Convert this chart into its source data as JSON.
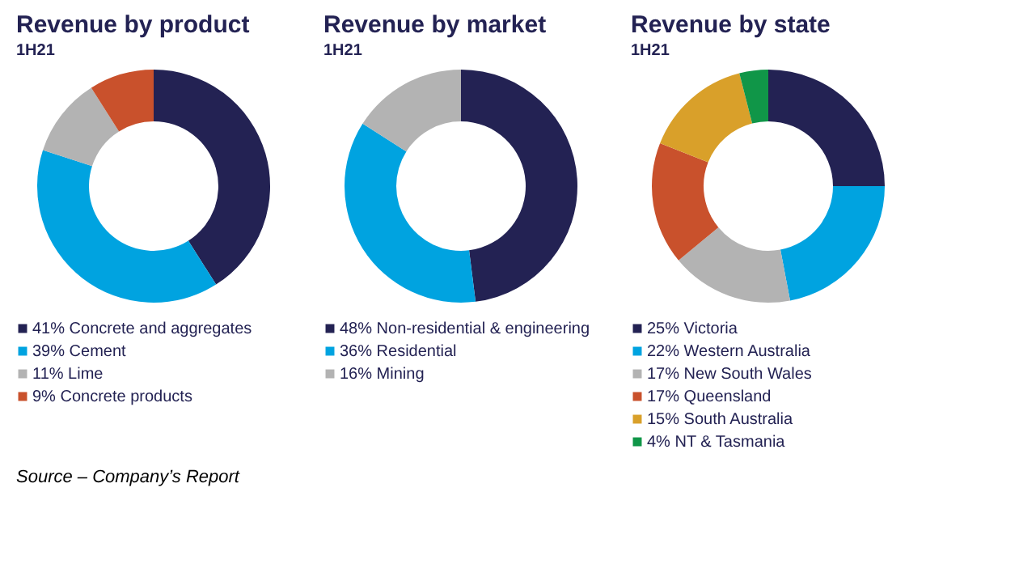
{
  "chart_data": [
    {
      "type": "donut",
      "subtitle": "1H21",
      "title": "Revenue by product",
      "legend": "bottom",
      "categories": [
        "Concrete and aggregates",
        "Cement",
        "Lime",
        "Concrete products"
      ],
      "values": [
        41,
        39,
        11,
        9
      ],
      "value_labels": [
        "41%",
        "39%",
        "11%",
        "9%"
      ],
      "colors": [
        "#232253",
        "#00a3e0",
        "#b3b3b3",
        "#c9512c"
      ]
    },
    {
      "type": "donut",
      "subtitle": "1H21",
      "title": "Revenue by market",
      "legend": "bottom",
      "categories": [
        "Non-residential & engineering",
        "Residential",
        "Mining"
      ],
      "values": [
        48,
        36,
        16
      ],
      "value_labels": [
        "48%",
        "36%",
        "16%"
      ],
      "colors": [
        "#232253",
        "#00a3e0",
        "#b3b3b3"
      ]
    },
    {
      "type": "donut",
      "subtitle": "1H21",
      "title": "Revenue by state",
      "legend": "bottom",
      "categories": [
        "Victoria",
        "Western Australia",
        "New South Wales",
        "Queensland",
        "South Australia",
        "NT & Tasmania"
      ],
      "values": [
        25,
        22,
        17,
        17,
        15,
        4
      ],
      "value_labels": [
        "25%",
        "22%",
        "17%",
        "17%",
        "15%",
        "4%"
      ],
      "colors": [
        "#232253",
        "#00a3e0",
        "#b3b3b3",
        "#c9512c",
        "#d9a02a",
        "#109648"
      ],
      "annotations": [
        "Source – Company’s Report"
      ]
    }
  ]
}
